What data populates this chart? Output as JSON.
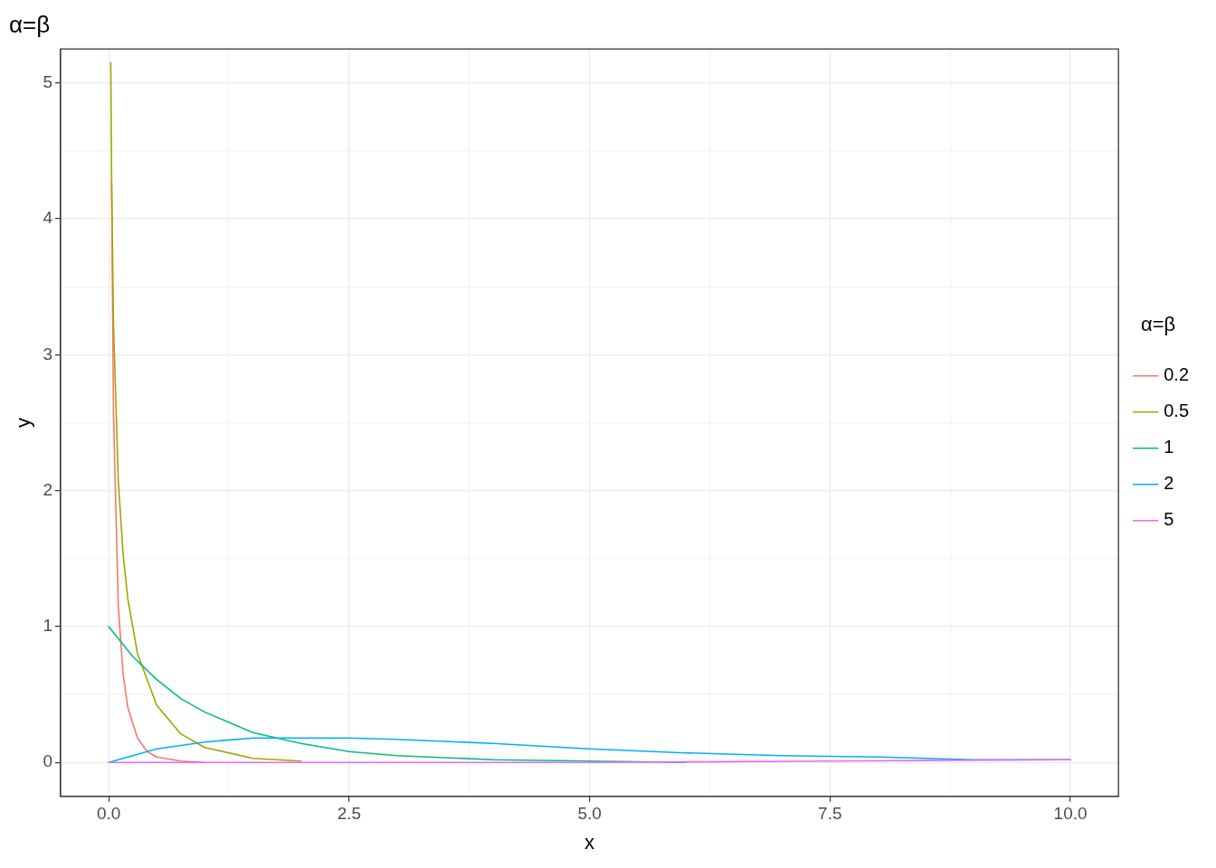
{
  "chart_data": {
    "type": "line",
    "title": "α=β",
    "xlabel": "x",
    "ylabel": "y",
    "legend_title": "α=β",
    "legend": "right",
    "grid": true,
    "marker": "none",
    "line_style": "solid",
    "xlim": [
      -0.5,
      10.5
    ],
    "ylim": [
      -0.25,
      5.25
    ],
    "xticks": [
      {
        "value": 0,
        "label": "0.0"
      },
      {
        "value": 1.25,
        "label": null
      },
      {
        "value": 2.5,
        "label": "2.5"
      },
      {
        "value": 3.75,
        "label": null
      },
      {
        "value": 5,
        "label": "5.0"
      },
      {
        "value": 6.25,
        "label": null
      },
      {
        "value": 7.5,
        "label": "7.5"
      },
      {
        "value": 8.75,
        "label": null
      },
      {
        "value": 10,
        "label": "10.0"
      }
    ],
    "yticks": [
      0,
      {
        "value": 0.5,
        "label": null
      },
      1,
      {
        "value": 1.5,
        "label": null
      },
      2,
      {
        "value": 2.5,
        "label": null
      },
      3,
      {
        "value": 3.5,
        "label": null
      },
      4,
      {
        "value": 4.5,
        "label": null
      },
      5
    ],
    "series": [
      {
        "name": "0.2",
        "color": "#f8766d",
        "x": [
          0.03,
          0.05,
          0.1,
          0.15,
          0.2,
          0.3,
          0.4,
          0.5,
          0.75,
          1
        ],
        "values": [
          4.27,
          2.57,
          1.15,
          0.65,
          0.4,
          0.18,
          0.08,
          0.04,
          0.01,
          0
        ]
      },
      {
        "name": "0.5",
        "color": "#a3a500",
        "x": [
          0.022,
          0.03,
          0.05,
          0.1,
          0.15,
          0.2,
          0.3,
          0.5,
          0.75,
          1,
          1.5,
          2
        ],
        "values": [
          5.15,
          4.34,
          3.23,
          2.07,
          1.53,
          1.2,
          0.8,
          0.42,
          0.21,
          0.11,
          0.03,
          0.01
        ]
      },
      {
        "name": "1",
        "color": "#00bf7d",
        "x": [
          0,
          0.25,
          0.5,
          0.75,
          1,
          1.5,
          2,
          2.5,
          3,
          4,
          5,
          6
        ],
        "values": [
          1,
          0.78,
          0.61,
          0.47,
          0.37,
          0.22,
          0.14,
          0.08,
          0.05,
          0.02,
          0.01,
          0
        ]
      },
      {
        "name": "2",
        "color": "#00b0f6",
        "x": [
          0,
          0.5,
          1,
          1.5,
          2,
          2.5,
          3,
          4,
          5,
          6,
          7,
          8,
          9,
          10
        ],
        "values": [
          0,
          0.1,
          0.15,
          0.18,
          0.18,
          0.18,
          0.17,
          0.14,
          0.1,
          0.07,
          0.05,
          0.04,
          0.02,
          0.02
        ]
      },
      {
        "name": "5",
        "color": "#e76bf3",
        "x": [
          0,
          2.5,
          5,
          7.5,
          10
        ],
        "values": [
          0,
          0,
          0,
          0.01,
          0.02
        ]
      }
    ]
  }
}
